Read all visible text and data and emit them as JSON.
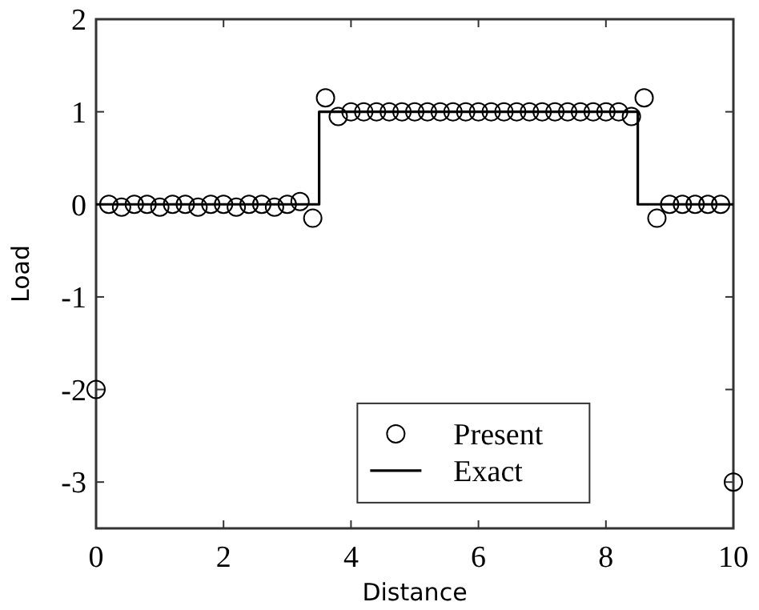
{
  "chart_data": {
    "type": "scatter",
    "xlabel": "Distance",
    "ylabel": "Load",
    "xlim": [
      0,
      10
    ],
    "ylim": [
      -3.5,
      2
    ],
    "xticks": [
      0,
      2,
      4,
      6,
      8,
      10
    ],
    "yticks": [
      -3,
      -2,
      -1,
      0,
      1,
      2
    ],
    "grid": false,
    "legend": "bottom",
    "series": [
      {
        "name": "Present",
        "marker": "circle",
        "color": "#000000",
        "x": [
          0,
          0.2,
          0.4,
          0.6,
          0.8,
          1.0,
          1.2,
          1.4,
          1.6,
          1.8,
          2.0,
          2.2,
          2.4,
          2.6,
          2.8,
          3.0,
          3.2,
          3.4,
          3.6,
          3.8,
          4.0,
          4.2,
          4.4,
          4.6,
          4.8,
          5.0,
          5.2,
          5.4,
          5.6,
          5.8,
          6.0,
          6.2,
          6.4,
          6.6,
          6.8,
          7.0,
          7.2,
          7.4,
          7.6,
          7.8,
          8.0,
          8.2,
          8.4,
          8.6,
          8.8,
          9.0,
          9.2,
          9.4,
          9.6,
          9.8,
          10
        ],
        "values": [
          -2,
          0,
          -0.03,
          0,
          0,
          -0.03,
          0,
          0,
          -0.03,
          0,
          0,
          -0.03,
          0,
          0,
          -0.03,
          0,
          0.03,
          -0.15,
          1.15,
          0.95,
          1,
          1,
          1,
          1,
          1,
          1,
          1,
          1,
          1,
          1,
          1,
          1,
          1,
          1,
          1,
          1,
          1,
          1,
          1,
          1,
          1,
          1,
          0.95,
          1.15,
          -0.15,
          0,
          0,
          0,
          0,
          0,
          -3
        ]
      },
      {
        "name": "Exact",
        "type": "line",
        "marker": "none",
        "line_style": "solid",
        "color": "#000000",
        "x": [
          0,
          3.5,
          3.5,
          8.5,
          8.5,
          10
        ],
        "values": [
          0,
          0,
          1,
          1,
          0,
          0
        ]
      }
    ]
  }
}
